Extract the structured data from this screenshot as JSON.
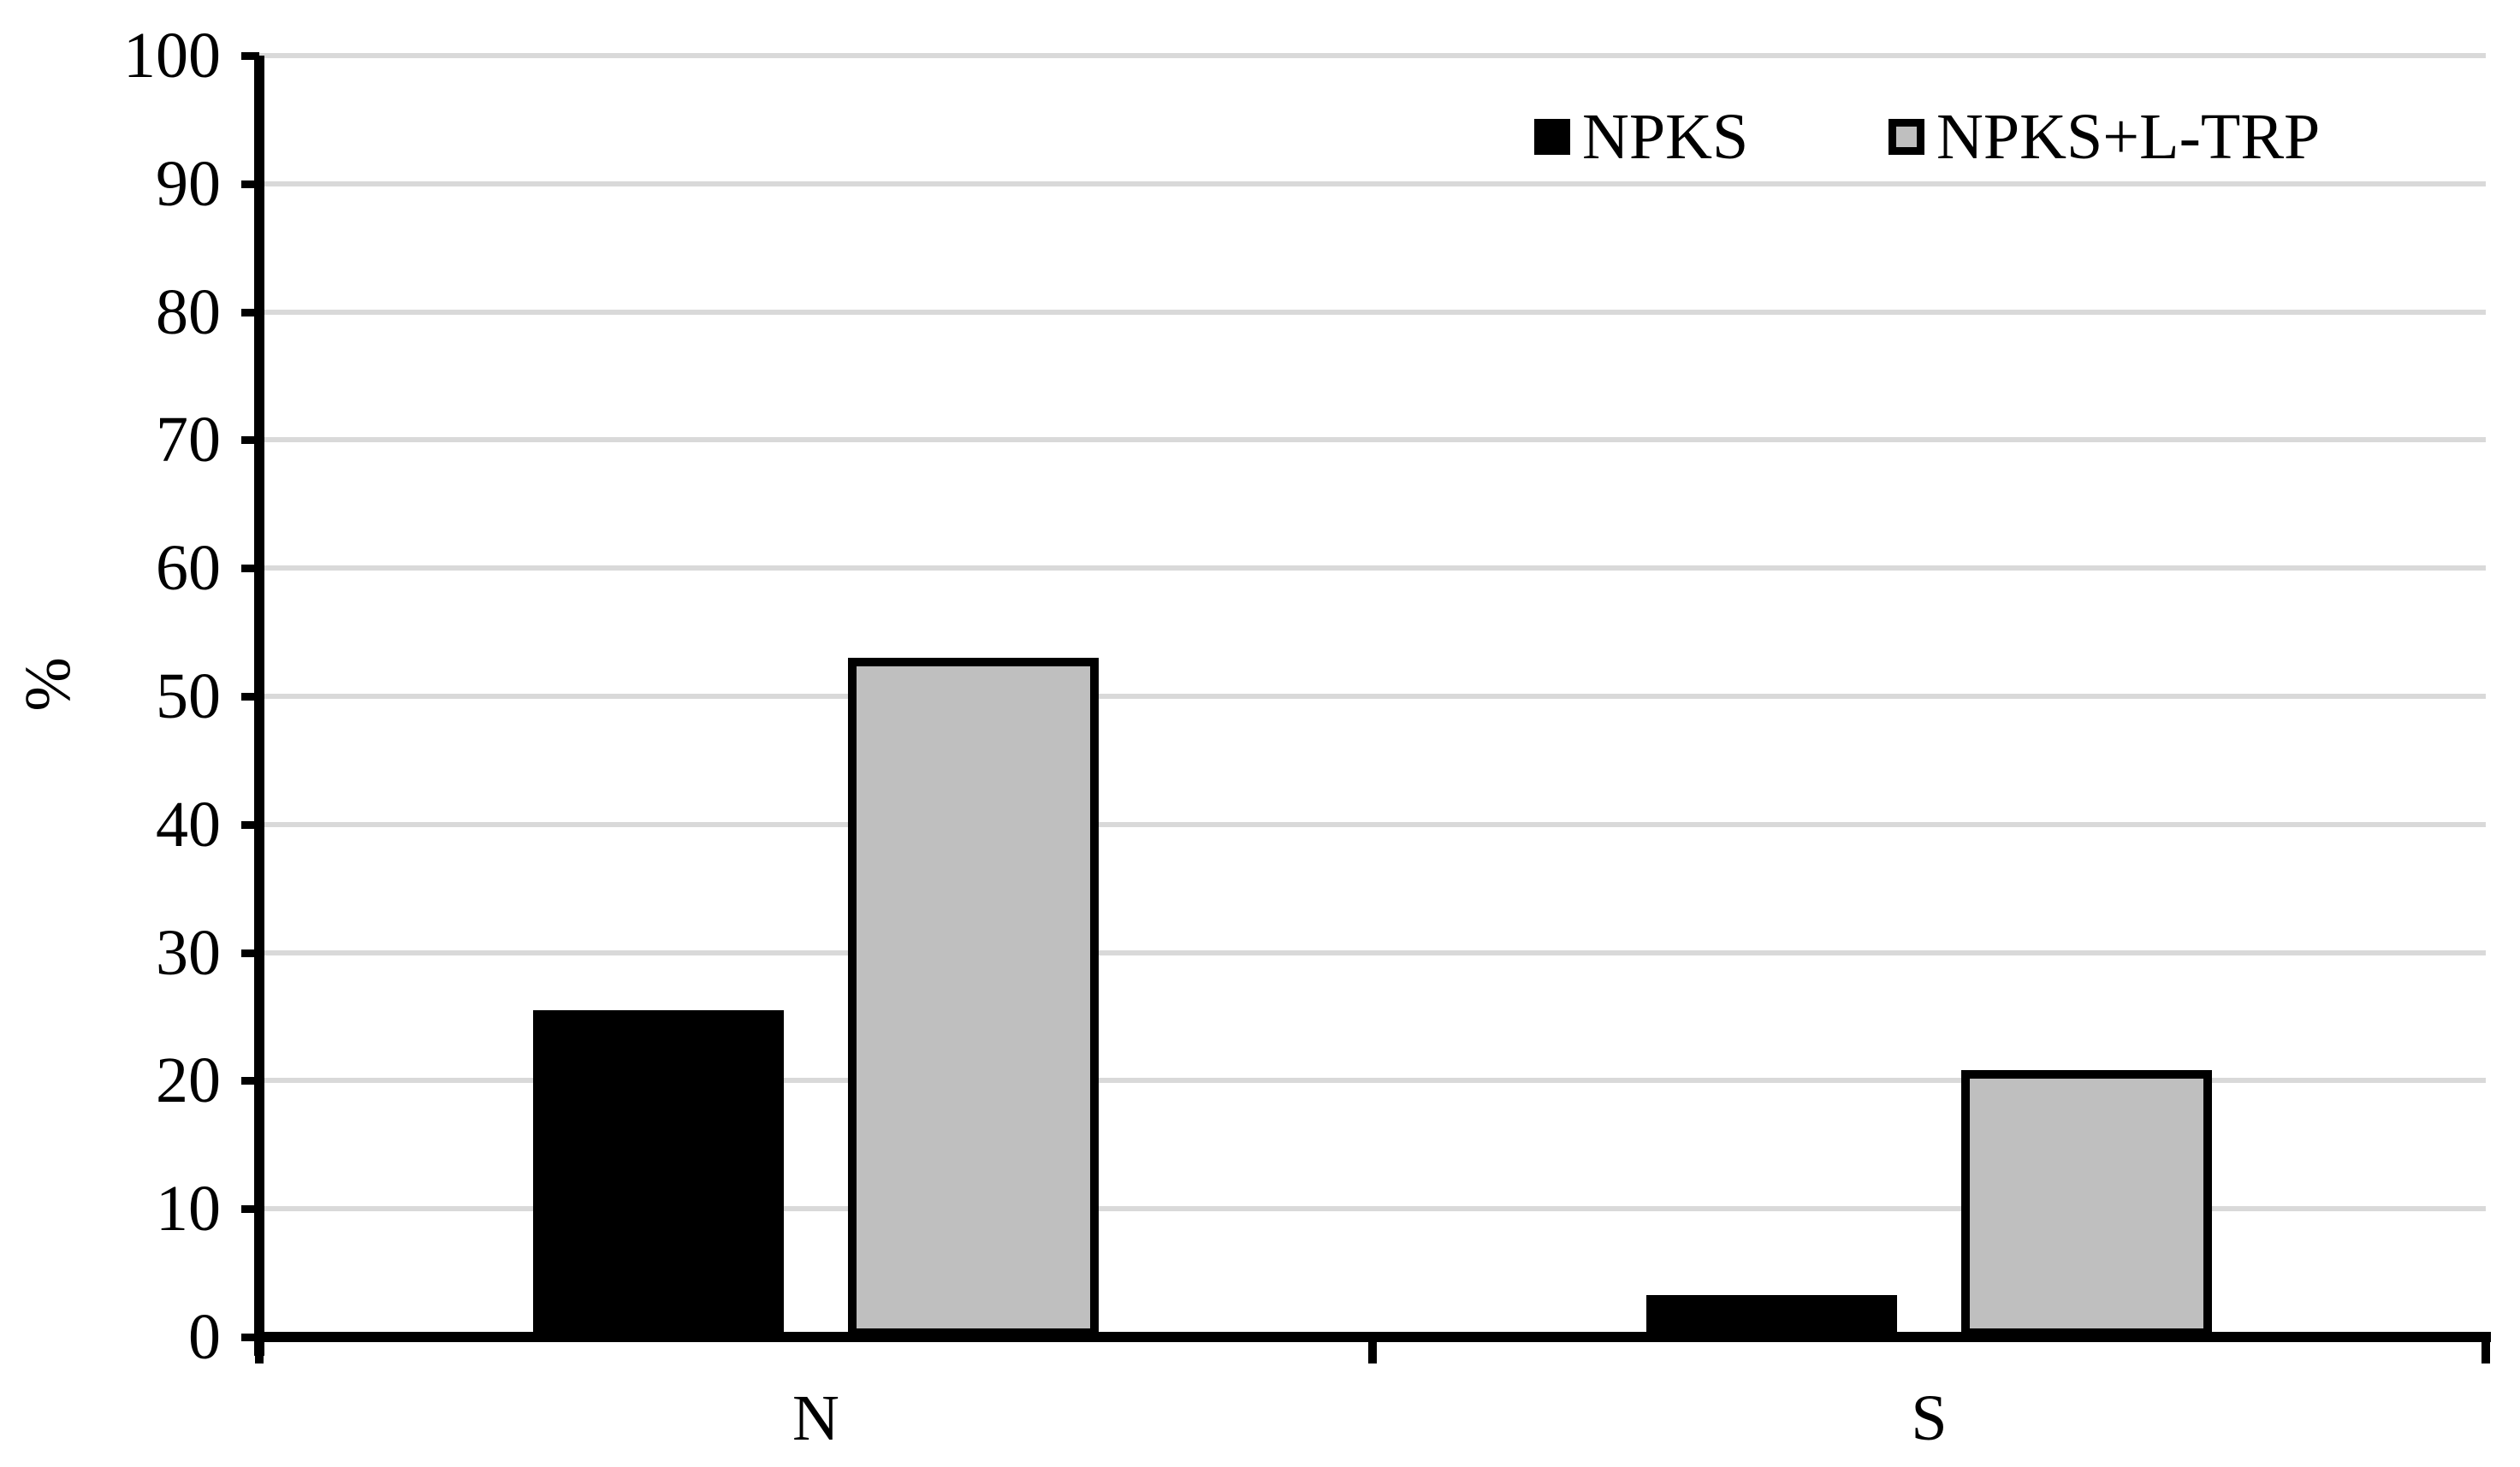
{
  "chart_data": {
    "type": "bar",
    "categories": [
      "N",
      "S"
    ],
    "series": [
      {
        "name": "NPKS",
        "color": "#000000",
        "border_color": "#000000",
        "values": [
          25.5,
          3.3
        ]
      },
      {
        "name": "NPKS+L-TRP",
        "color": "#BFBFBF",
        "border_color": "#000000",
        "values": [
          53.0,
          20.8
        ]
      }
    ],
    "title": "",
    "xlabel": "",
    "ylabel": "%",
    "ylim": [
      0,
      100
    ],
    "ytick_interval": 10,
    "yticks": [
      0,
      10,
      20,
      30,
      40,
      50,
      60,
      70,
      80,
      90,
      100
    ],
    "grid": true,
    "legend_position": "top-right",
    "colors": {
      "background": "#FFFFFF",
      "gridline": "#D9D9D9",
      "axis": "#000000"
    }
  }
}
